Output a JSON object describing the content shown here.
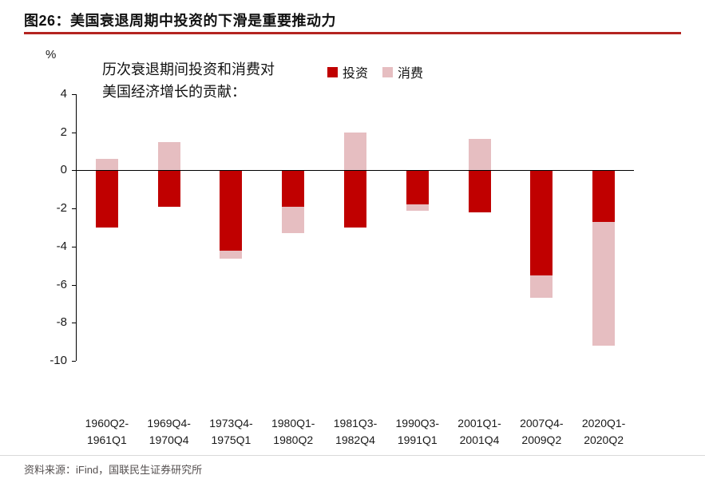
{
  "header": {
    "title": "图26：美国衰退周期中投资的下滑是重要推动力",
    "accent_color": "#b42420"
  },
  "chart_data": {
    "type": "bar",
    "stacked": true,
    "title": "历次衰退期间投资和消费对美国经济增长的贡献：",
    "annotation_lines": [
      "历次衰退期间投资和消费对",
      "美国经济增长的贡献："
    ],
    "unit_label": "%",
    "legend_position": "top",
    "grid": false,
    "ylim": [
      -10,
      4
    ],
    "y_ticks": [
      4,
      2,
      0,
      -2,
      -4,
      -6,
      -8,
      -10
    ],
    "categories": [
      "1960Q2-1961Q1",
      "1969Q4-1970Q4",
      "1973Q4-1975Q1",
      "1980Q1-1980Q2",
      "1981Q3-1982Q4",
      "1990Q3-1991Q1",
      "2001Q1-2001Q4",
      "2007Q4-2009Q2",
      "2020Q1-2020Q2"
    ],
    "category_label_lines": [
      [
        "1960Q2-",
        "1961Q1"
      ],
      [
        "1969Q4-",
        "1970Q4"
      ],
      [
        "1973Q4-",
        "1975Q1"
      ],
      [
        "1980Q1-",
        "1980Q2"
      ],
      [
        "1981Q3-",
        "1982Q4"
      ],
      [
        "1990Q3-",
        "1991Q1"
      ],
      [
        "2001Q1-",
        "2001Q4"
      ],
      [
        "2007Q4-",
        "2009Q2"
      ],
      [
        "2020Q1-",
        "2020Q2"
      ]
    ],
    "series": [
      {
        "name": "投资",
        "color": "#c00000",
        "values": [
          -3.0,
          -1.9,
          -4.2,
          -1.9,
          -3.0,
          -1.8,
          -2.2,
          -5.5,
          -2.7
        ]
      },
      {
        "name": "消费",
        "color": "#e6bec1",
        "values": [
          0.6,
          1.5,
          -0.45,
          -1.4,
          2.0,
          -0.3,
          1.65,
          -1.2,
          -6.5
        ]
      }
    ]
  },
  "footer": {
    "source": "资料来源：iFind，国联民生证券研究所"
  }
}
